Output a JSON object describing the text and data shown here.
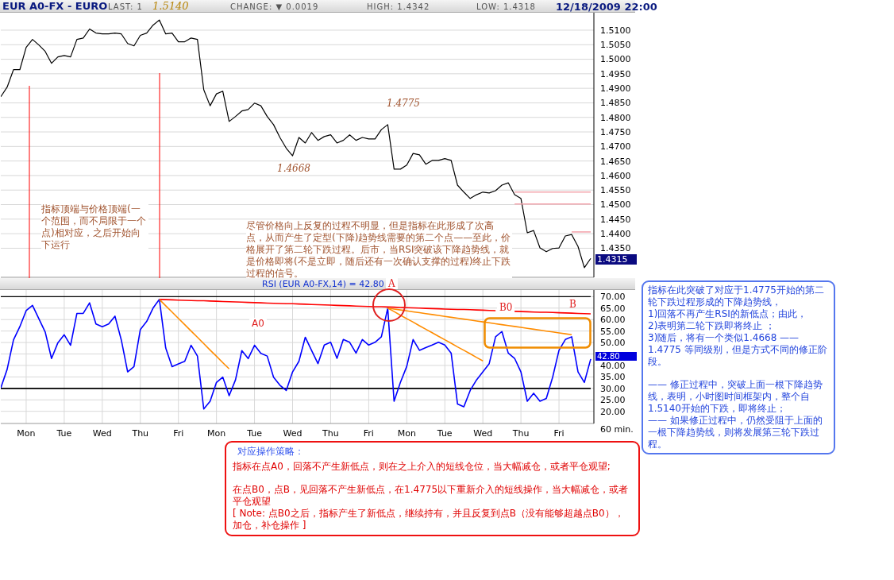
{
  "chart_data": [
    {
      "type": "line",
      "title": "EUR A0-FX - EURO",
      "annotations": [
        "LAST: 1",
        "1.5140",
        "CHANGE: ▼ 0.0019",
        "HIGH: 1.4342",
        "LOW: 1.4318",
        "12/18/2009 22:00",
        "1.4775",
        {
          "text": "1.4668",
          "y": 1.4668
        },
        "指标顶端与价格顶端(一个范围，而不局限于一个点)相对应，之后开始向下运行",
        "尽管价格向上反复的过程不明显，但是指标在此形成了次高点，从而产生了定型(下降)趋势线需要的第二个点——至此，价格展开了第二轮下跌过程。后市，当RSI突破该下降趋势线，就是价格即将(不是立即，随后还有一次确认支撑的过程)终止下跌过程的信号。",
        "1.4315"
      ],
      "categories": [
        null,
        null,
        null,
        null,
        null,
        null,
        null,
        null,
        null,
        null,
        null,
        null,
        null,
        null,
        null,
        null,
        null,
        null,
        null,
        null,
        null,
        null,
        null,
        null,
        null,
        null,
        null,
        null,
        null,
        null,
        null,
        null,
        null,
        null,
        null,
        null,
        null,
        null,
        null,
        null,
        null,
        null,
        null,
        null,
        null,
        null,
        null,
        null,
        null,
        null,
        null,
        null,
        null,
        null,
        null,
        null,
        null,
        null,
        null,
        null,
        null,
        null,
        null,
        null,
        null,
        null,
        null,
        null,
        null,
        null,
        null,
        null,
        null,
        null,
        null,
        null,
        null,
        null,
        null,
        null,
        null,
        null,
        null,
        null,
        null,
        null,
        null,
        null,
        null,
        null,
        null,
        null,
        null,
        null
      ],
      "series": [
        {
          "color": "#000000",
          "values": [
            1.4871,
            1.4904,
            1.4964,
            1.4964,
            1.5041,
            1.5068,
            1.5049,
            1.5027,
            1.4986,
            1.5008,
            1.5013,
            1.5008,
            1.5068,
            1.5073,
            1.5104,
            1.509,
            1.5087,
            1.5087,
            1.509,
            1.5087,
            1.5054,
            1.5046,
            1.5082,
            1.509,
            1.5117,
            1.5135,
            1.5087,
            1.509,
            1.506,
            1.506,
            1.5073,
            1.5068,
            1.4895,
            1.484,
            1.4881,
            1.489,
            1.4786,
            1.4803,
            1.4822,
            1.4827,
            1.4849,
            1.484,
            1.4803,
            1.4775,
            1.4731,
            1.4694,
            1.4668,
            1.4731,
            1.4712,
            1.4748,
            1.4721,
            1.4734,
            1.474,
            1.4712,
            1.4721,
            1.474,
            1.4721,
            1.4731,
            1.4726,
            1.4726,
            1.4758,
            1.4775,
            1.4622,
            1.4622,
            1.4636,
            1.4676,
            1.4671,
            1.4639,
            1.4652,
            1.4652,
            1.4658,
            1.4652,
            1.4567,
            1.4543,
            1.4521,
            1.4534,
            1.4543,
            1.454,
            1.4548,
            1.4567,
            1.4575,
            1.4534,
            1.4521,
            1.4403,
            1.4411,
            1.4351,
            1.4338,
            1.4349,
            1.4351,
            1.4392,
            1.4397,
            1.4356,
            1.4283,
            1.4315
          ]
        },
        {
          "color": "#f4a6ae",
          "values": [
            null,
            null,
            null,
            null,
            null,
            null,
            null,
            null,
            null,
            null,
            null,
            null,
            null,
            null,
            null,
            null,
            null,
            null,
            null,
            null,
            null,
            null,
            null,
            null,
            null,
            null,
            null,
            null,
            null,
            null,
            null,
            null,
            null,
            null,
            null,
            null,
            null,
            null,
            null,
            null,
            null,
            null,
            null,
            null,
            null,
            null,
            null,
            null,
            null,
            null,
            null,
            null,
            null,
            null,
            null,
            null,
            null,
            null,
            null,
            null,
            null,
            null,
            null,
            null,
            null,
            null,
            null,
            null,
            null,
            null,
            null,
            null,
            null,
            null,
            null,
            null,
            null,
            null,
            null,
            null,
            null,
            1.4543,
            1.4543,
            1.4543,
            1.4543,
            1.4543,
            1.4543,
            1.4543,
            1.4543,
            1.4543,
            1.4543,
            1.4543,
            1.4543,
            1.4543
          ]
        },
        {
          "color": "#f4a6ae",
          "values": [
            null,
            null,
            null,
            null,
            null,
            null,
            null,
            null,
            null,
            null,
            null,
            null,
            null,
            null,
            null,
            null,
            null,
            null,
            null,
            null,
            null,
            null,
            null,
            null,
            null,
            null,
            null,
            null,
            null,
            null,
            null,
            null,
            null,
            null,
            null,
            null,
            null,
            null,
            null,
            null,
            null,
            null,
            null,
            null,
            null,
            null,
            null,
            null,
            null,
            null,
            null,
            null,
            null,
            null,
            null,
            null,
            null,
            null,
            null,
            null,
            null,
            null,
            null,
            null,
            null,
            null,
            null,
            null,
            null,
            null,
            null,
            null,
            null,
            null,
            null,
            null,
            null,
            null,
            null,
            null,
            null,
            1.4502,
            1.4502,
            1.4502,
            1.4502,
            1.4502,
            1.4502,
            1.4502,
            1.4502,
            1.4502,
            1.4502,
            1.4502,
            1.4502,
            1.4502
          ]
        },
        {
          "color": "#f4a6ae",
          "values": [
            null,
            null,
            null,
            null,
            null,
            null,
            null,
            null,
            null,
            null,
            null,
            null,
            null,
            null,
            null,
            null,
            null,
            null,
            null,
            null,
            null,
            null,
            null,
            null,
            null,
            null,
            null,
            null,
            null,
            null,
            null,
            null,
            null,
            null,
            null,
            null,
            null,
            null,
            null,
            null,
            null,
            null,
            null,
            null,
            null,
            null,
            null,
            null,
            null,
            null,
            null,
            null,
            null,
            null,
            null,
            null,
            null,
            null,
            null,
            null,
            null,
            null,
            null,
            null,
            null,
            null,
            null,
            null,
            null,
            null,
            null,
            null,
            null,
            null,
            null,
            null,
            null,
            null,
            null,
            null,
            null,
            null,
            null,
            null,
            null,
            null,
            null,
            null,
            null,
            null,
            1.4406,
            1.4406,
            1.4406,
            1.4406
          ]
        }
      ],
      "ylim": [
        1.425,
        1.516
      ],
      "yticks": [
        {
          "value": 1.435,
          "label": "1.4350"
        },
        {
          "value": 1.44,
          "label": "1.4400"
        },
        {
          "value": 1.445,
          "label": "1.4450"
        },
        {
          "value": 1.45,
          "label": "1.4500"
        },
        {
          "value": 1.455,
          "label": "1.4550"
        },
        {
          "value": 1.46,
          "label": "1.4600"
        },
        {
          "value": 1.465,
          "label": "1.4650"
        },
        {
          "value": 1.47,
          "label": "1.4700"
        },
        {
          "value": 1.475,
          "label": "1.4750"
        },
        {
          "value": 1.48,
          "label": "1.4800"
        },
        {
          "value": 1.485,
          "label": "1.4850"
        },
        {
          "value": 1.49,
          "label": "1.4900"
        },
        {
          "value": 1.495,
          "label": "1.4950"
        },
        {
          "value": 1.5,
          "label": "1.5000"
        },
        {
          "value": 1.505,
          "label": "1.5050"
        },
        {
          "value": 1.51,
          "label": "1.5100"
        }
      ],
      "tick_labels": "y",
      "grid": true
    },
    {
      "type": "line",
      "title": "RSI (EUR A0-FX,14) = 42.80",
      "xlabel": "60 min.",
      "annotations": [
        "A",
        "B0",
        "B",
        "A0",
        "42.80"
      ],
      "categories": [
        null,
        null,
        null,
        null,
        "Mon",
        null,
        null,
        null,
        null,
        null,
        "Tue",
        null,
        null,
        null,
        null,
        null,
        "Wed",
        null,
        null,
        null,
        null,
        null,
        "Thu",
        null,
        null,
        null,
        null,
        null,
        "Fri",
        null,
        null,
        null,
        null,
        null,
        "Mon",
        null,
        null,
        null,
        null,
        null,
        "Tue",
        null,
        null,
        null,
        null,
        null,
        "Wed",
        null,
        null,
        null,
        null,
        null,
        "Thu",
        null,
        null,
        null,
        null,
        null,
        "Fri",
        null,
        null,
        null,
        null,
        null,
        "Mon",
        null,
        null,
        null,
        null,
        null,
        "Tue",
        null,
        null,
        null,
        null,
        null,
        "Wed",
        null,
        null,
        null,
        null,
        null,
        "Thu",
        null,
        null,
        null,
        null,
        null,
        "Fri",
        null,
        null,
        null,
        null,
        null
      ],
      "series": [
        {
          "color": "#000000",
          "values": [
            70,
            70,
            70,
            70,
            70,
            70,
            70,
            70,
            70,
            70,
            70,
            70,
            70,
            70,
            70,
            70,
            70,
            70,
            70,
            70,
            70,
            70,
            70,
            70,
            70,
            70,
            70,
            70,
            70,
            70,
            70,
            70,
            70,
            70,
            70,
            70,
            70,
            70,
            70,
            70,
            70,
            70,
            70,
            70,
            70,
            70,
            70,
            70,
            70,
            70,
            70,
            70,
            70,
            70,
            70,
            70,
            70,
            70,
            70,
            70,
            70,
            70,
            70,
            70,
            70,
            70,
            70,
            70,
            70,
            70,
            70,
            70,
            70,
            70,
            70,
            70,
            70,
            70,
            70,
            70,
            70,
            70,
            70,
            70,
            70,
            70,
            70,
            70,
            70,
            70,
            70,
            70,
            70,
            70
          ]
        },
        {
          "color": "#000000",
          "values": [
            30,
            30,
            30,
            30,
            30,
            30,
            30,
            30,
            30,
            30,
            30,
            30,
            30,
            30,
            30,
            30,
            30,
            30,
            30,
            30,
            30,
            30,
            30,
            30,
            30,
            30,
            30,
            30,
            30,
            30,
            30,
            30,
            30,
            30,
            30,
            30,
            30,
            30,
            30,
            30,
            30,
            30,
            30,
            30,
            30,
            30,
            30,
            30,
            30,
            30,
            30,
            30,
            30,
            30,
            30,
            30,
            30,
            30,
            30,
            30,
            30,
            30,
            30,
            30,
            30,
            30,
            30,
            30,
            30,
            30,
            30,
            30,
            30,
            30,
            30,
            30,
            30,
            30,
            30,
            30,
            30,
            30,
            30,
            30,
            30,
            30,
            30,
            30,
            30,
            30,
            30,
            30,
            30,
            30
          ]
        },
        {
          "color": "#0000ff",
          "values": [
            30.2,
            38.3,
            51.1,
            56.9,
            63.9,
            66.2,
            60.4,
            54.6,
            43.0,
            49.9,
            53.4,
            48.8,
            62.7,
            62.7,
            67.3,
            58.1,
            56.9,
            58.1,
            61.5,
            51.1,
            37.2,
            39.5,
            55.7,
            59.2,
            65.0,
            68.8,
            47.6,
            39.5,
            40.7,
            41.8,
            48.8,
            44.1,
            21.0,
            24.4,
            32.6,
            34.9,
            26.8,
            33.7,
            46.5,
            43.0,
            48.8,
            45.3,
            44.1,
            34.9,
            31.4,
            29.1,
            37.2,
            41.8,
            52.3,
            46.5,
            40.8,
            48.9,
            50.1,
            43.1,
            51.3,
            50.1,
            45.4,
            51.3,
            48.9,
            50.1,
            52.5,
            65.0,
            24.4,
            32.6,
            39.6,
            51.3,
            46.6,
            47.8,
            48.9,
            50.1,
            48.9,
            45.4,
            23.2,
            22.0,
            29.1,
            33.7,
            37.2,
            40.8,
            52.5,
            54.8,
            45.4,
            43.1,
            37.2,
            24.4,
            27.9,
            24.4,
            25.6,
            34.9,
            46.6,
            51.3,
            52.5,
            37.2,
            32.6,
            42.8
          ]
        },
        {
          "color": "#ff0000",
          "values": [
            null,
            null,
            null,
            null,
            null,
            null,
            null,
            null,
            null,
            null,
            null,
            null,
            null,
            null,
            null,
            null,
            null,
            null,
            null,
            null,
            null,
            null,
            null,
            null,
            null,
            68.8,
            68.7,
            68.6,
            68.5,
            68.4,
            68.3,
            68.2,
            68.2,
            68.1,
            68.0,
            67.9,
            67.8,
            67.7,
            67.6,
            67.5,
            67.4,
            67.3,
            67.2,
            67.1,
            67.0,
            66.9,
            66.9,
            66.8,
            66.7,
            66.6,
            66.5,
            66.4,
            66.3,
            66.2,
            66.1,
            66.0,
            65.9,
            65.8,
            65.7,
            65.6,
            65.6,
            65.5,
            65.4,
            65.3,
            65.2,
            65.1,
            65.0,
            64.9,
            64.8,
            64.7,
            64.6,
            64.5,
            64.4,
            64.4,
            64.3,
            64.2,
            64.1,
            64.0,
            63.9,
            null,
            null,
            63.6,
            63.5,
            63.4,
            63.3,
            63.2,
            63.2,
            63.1,
            63.0,
            62.9,
            62.8,
            62.7,
            62.6,
            62.5
          ]
        },
        {
          "color": "#ff8c00",
          "values": [
            null,
            null,
            null,
            null,
            null,
            null,
            null,
            null,
            null,
            null,
            null,
            null,
            null,
            null,
            null,
            null,
            null,
            null,
            null,
            null,
            null,
            null,
            null,
            null,
            null,
            68.8,
            66.0,
            63.3,
            60.5,
            57.8,
            55.0,
            52.3,
            49.5,
            46.7,
            44.0,
            41.2,
            38.5,
            null,
            null,
            null,
            null,
            null,
            null,
            null,
            null,
            null,
            null,
            null,
            null,
            null,
            null,
            null,
            null,
            null,
            null,
            null,
            null,
            null,
            null,
            null,
            null,
            null,
            null,
            null,
            null,
            null,
            null,
            null,
            null,
            null,
            null,
            null,
            null,
            null,
            null,
            null,
            null,
            null,
            null,
            null,
            null,
            null,
            null,
            null,
            null,
            null,
            null,
            null,
            null,
            null,
            null,
            null,
            null,
            null
          ]
        },
        {
          "color": "#ff8c00",
          "values": [
            null,
            null,
            null,
            null,
            null,
            null,
            null,
            null,
            null,
            null,
            null,
            null,
            null,
            null,
            null,
            null,
            null,
            null,
            null,
            null,
            null,
            null,
            null,
            null,
            null,
            null,
            null,
            null,
            null,
            null,
            null,
            null,
            null,
            null,
            null,
            null,
            null,
            null,
            null,
            null,
            null,
            null,
            null,
            null,
            null,
            null,
            null,
            null,
            null,
            null,
            null,
            null,
            null,
            null,
            null,
            null,
            null,
            null,
            null,
            null,
            null,
            65.0,
            63.5,
            61.9,
            60.4,
            58.9,
            57.3,
            55.8,
            54.3,
            52.7,
            51.2,
            49.7,
            48.1,
            46.6,
            45.1,
            43.5,
            42.0,
            null,
            null,
            null,
            null,
            null,
            null,
            null,
            null,
            null,
            null,
            null,
            null,
            null,
            null,
            null,
            null,
            null
          ]
        },
        {
          "color": "#ff8c00",
          "values": [
            null,
            null,
            null,
            null,
            null,
            null,
            null,
            null,
            null,
            null,
            null,
            null,
            null,
            null,
            null,
            null,
            null,
            null,
            null,
            null,
            null,
            null,
            null,
            null,
            null,
            null,
            null,
            null,
            null,
            null,
            null,
            null,
            null,
            null,
            null,
            null,
            null,
            null,
            null,
            null,
            null,
            null,
            null,
            null,
            null,
            null,
            null,
            null,
            null,
            null,
            null,
            null,
            null,
            null,
            null,
            null,
            null,
            null,
            null,
            null,
            null,
            65.0,
            64.6,
            64.2,
            63.8,
            63.4,
            63.0,
            62.6,
            62.2,
            61.8,
            61.4,
            61.0,
            60.6,
            60.2,
            59.8,
            59.4,
            59.0,
            58.6,
            58.2,
            57.8,
            57.4,
            57.0,
            56.6,
            56.2,
            55.8,
            55.4,
            55.0,
            54.6,
            54.2,
            53.8,
            53.4,
            null,
            null,
            null
          ]
        }
      ],
      "ylim": [
        14.7,
        72.9
      ],
      "yticks": [
        {
          "value": 20,
          "label": "20.00"
        },
        {
          "value": 25,
          "label": "25.00"
        },
        {
          "value": 30,
          "label": "30.00"
        },
        {
          "value": 35,
          "label": "35.00"
        },
        {
          "value": 40,
          "label": "40.00"
        },
        {
          "value": 45,
          "label": null
        },
        {
          "value": 50,
          "label": "50.00"
        },
        {
          "value": 55,
          "label": "55.00"
        },
        {
          "value": 60,
          "label": "60.00"
        },
        {
          "value": 65,
          "label": "65.00"
        },
        {
          "value": 70,
          "label": "70.00"
        }
      ],
      "grid": true
    },
    {
      "type": "other",
      "annotations": [
        "指标在此突破了对应于1.4775开始的第二轮下跌过程形成的下降趋势线，",
        "1)回落不再产生RSI的新低点；由此，",
        "2)表明第二轮下跌即将终止 ；",
        "3)随后，将有一个类似1.4668 ——1.4775 等同级别，但是方式不同的修正阶段。",
        "—— 修正过程中，突破上面一根下降趋势线，表明，小时图时间框架内，整个自1.5140开始的下跌，即将终止；",
        "—— 如果修正过程中，仍然受阻于上面的一根下降趋势线，则将发展第三轮下跌过程。"
      ]
    },
    {
      "type": "other",
      "title": "对应操作策略：",
      "annotations": [
        "指标在点A0，回落不产生新低点，则在之上介入的短线仓位，当大幅减仓，或者平仓观望;",
        "在点B0，点B，见回落不产生新低点，在1.4775以下重新介入的短线操作，当大幅减仓，或者平仓观望",
        "[ Note: 点B0之后，指标产生了新低点，继续持有，并且反复到点B（没有能够超越点B0），加仓，补仓操作 ]"
      ]
    }
  ]
}
